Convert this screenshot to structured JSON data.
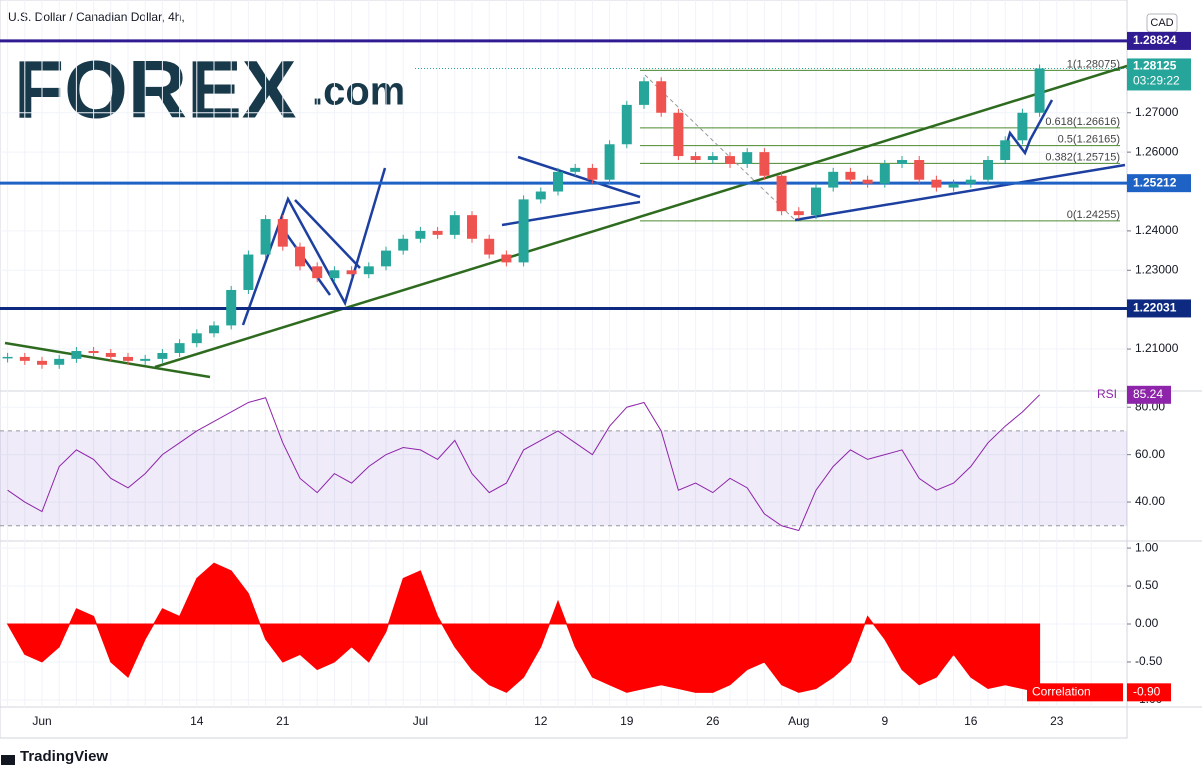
{
  "header": {
    "logo_main": "FOREX",
    "logo_suffix": ".com",
    "brand": "TradingView"
  },
  "chart_data": [
    {
      "type": "candlestick",
      "title": "U.S. Dollar / Canadian Dollar, 4h,",
      "currency": "CAD",
      "categories": [
        null,
        null,
        "Jun",
        null,
        null,
        null,
        null,
        null,
        null,
        null,
        null,
        "14",
        null,
        null,
        null,
        null,
        "21",
        null,
        null,
        null,
        null,
        null,
        null,
        null,
        "Jul",
        null,
        null,
        null,
        null,
        null,
        null,
        "12",
        null,
        null,
        null,
        null,
        "19",
        null,
        null,
        null,
        null,
        "26",
        null,
        null,
        null,
        null,
        "Aug",
        null,
        null,
        null,
        null,
        "9",
        null,
        null,
        null,
        null,
        "16",
        null,
        null,
        null,
        null,
        "23",
        null,
        null
      ],
      "values": [
        1.208,
        1.207,
        1.206,
        1.2075,
        1.2095,
        1.209,
        1.208,
        1.207,
        1.2075,
        1.209,
        1.2115,
        1.214,
        1.216,
        1.225,
        1.234,
        1.243,
        1.236,
        1.231,
        1.228,
        1.23,
        1.229,
        1.231,
        1.235,
        1.238,
        1.24,
        1.239,
        1.244,
        1.238,
        1.234,
        1.232,
        1.248,
        1.25,
        1.255,
        1.256,
        1.253,
        1.262,
        1.272,
        1.278,
        1.27,
        1.259,
        1.258,
        1.259,
        1.257,
        1.26,
        1.254,
        1.245,
        1.244,
        1.251,
        1.255,
        1.253,
        1.252,
        1.257,
        1.258,
        1.253,
        1.251,
        1.252,
        1.253,
        1.258,
        1.263,
        1.27,
        1.28125,
        null,
        null,
        null
      ],
      "up_color": "#26a69a",
      "down_color": "#ef5350",
      "countdown": "03:29:22",
      "ylim": [
        1.1996,
        1.2966
      ],
      "yticks": [
        {
          "value": 1.21,
          "label": "1.21000"
        },
        {
          "value": 1.23,
          "label": "1.23000"
        },
        {
          "value": 1.24,
          "label": "1.24000"
        },
        {
          "value": 1.26,
          "label": "1.26000"
        },
        {
          "value": 1.27,
          "label": "1.27000"
        }
      ],
      "levels": [
        {
          "value": 1.28824,
          "color": "#311b92"
        },
        {
          "value": 1.25212,
          "color": "#1e62c6"
        },
        {
          "value": 1.22031,
          "color": "#0d2a80"
        }
      ],
      "fib": [
        {
          "value": 1.28075,
          "label": "1(1.28075)"
        },
        {
          "value": 1.26616,
          "label": "0.618(1.26616)"
        },
        {
          "value": 1.26165,
          "label": "0.5(1.26165)"
        },
        {
          "value": 1.25715,
          "label": "0.382(1.25715)"
        },
        {
          "value": 1.24255,
          "label": "0(1.24255)"
        }
      ]
    },
    {
      "type": "line",
      "name": "RSI",
      "color": "#8e24aa",
      "values": [
        45,
        40,
        36,
        55,
        62,
        58,
        50,
        46,
        52,
        60,
        65,
        70,
        74,
        78,
        82,
        84,
        65,
        50,
        44,
        52,
        48,
        55,
        60,
        63,
        62,
        58,
        66,
        52,
        44,
        48,
        62,
        66,
        70,
        65,
        60,
        72,
        80,
        82,
        70,
        45,
        48,
        44,
        50,
        46,
        35,
        30,
        28,
        45,
        55,
        62,
        58,
        60,
        62,
        50,
        45,
        48,
        55,
        65,
        72,
        78,
        85.24
      ],
      "band": [
        30,
        70
      ],
      "ylim": [
        24,
        86
      ],
      "yticks": [
        {
          "value": 80,
          "label": "80.00"
        },
        {
          "value": 60,
          "label": "60.00"
        },
        {
          "value": 40,
          "label": "40.00"
        }
      ]
    },
    {
      "type": "area",
      "name": "Correlation",
      "color": "#ff0000",
      "last_label": "-0.90",
      "values": [
        0,
        -0.4,
        -0.5,
        -0.3,
        0.2,
        0.1,
        -0.5,
        -0.7,
        -0.2,
        0.2,
        0.1,
        0.6,
        0.8,
        0.7,
        0.4,
        -0.2,
        -0.5,
        -0.4,
        -0.6,
        -0.5,
        -0.3,
        -0.5,
        -0.1,
        0.6,
        0.7,
        0.1,
        -0.3,
        -0.6,
        -0.8,
        -0.9,
        -0.7,
        -0.3,
        0.3,
        -0.3,
        -0.7,
        -0.8,
        -0.9,
        -0.85,
        -0.8,
        -0.85,
        -0.9,
        -0.9,
        -0.8,
        -0.6,
        -0.5,
        -0.8,
        -0.9,
        -0.85,
        -0.7,
        -0.5,
        0.1,
        -0.2,
        -0.6,
        -0.8,
        -0.7,
        -0.4,
        -0.7,
        -0.85,
        -0.8,
        -0.85,
        -0.9
      ],
      "ylim": [
        -1.067,
        1.067
      ],
      "yticks": [
        {
          "value": 1,
          "label": "1.00"
        },
        {
          "value": 0.5,
          "label": "0.50"
        },
        {
          "value": 0,
          "label": "0.00"
        },
        {
          "value": -0.5,
          "label": "-0.50"
        },
        {
          "value": -1,
          "label": "-1.00"
        }
      ]
    }
  ]
}
